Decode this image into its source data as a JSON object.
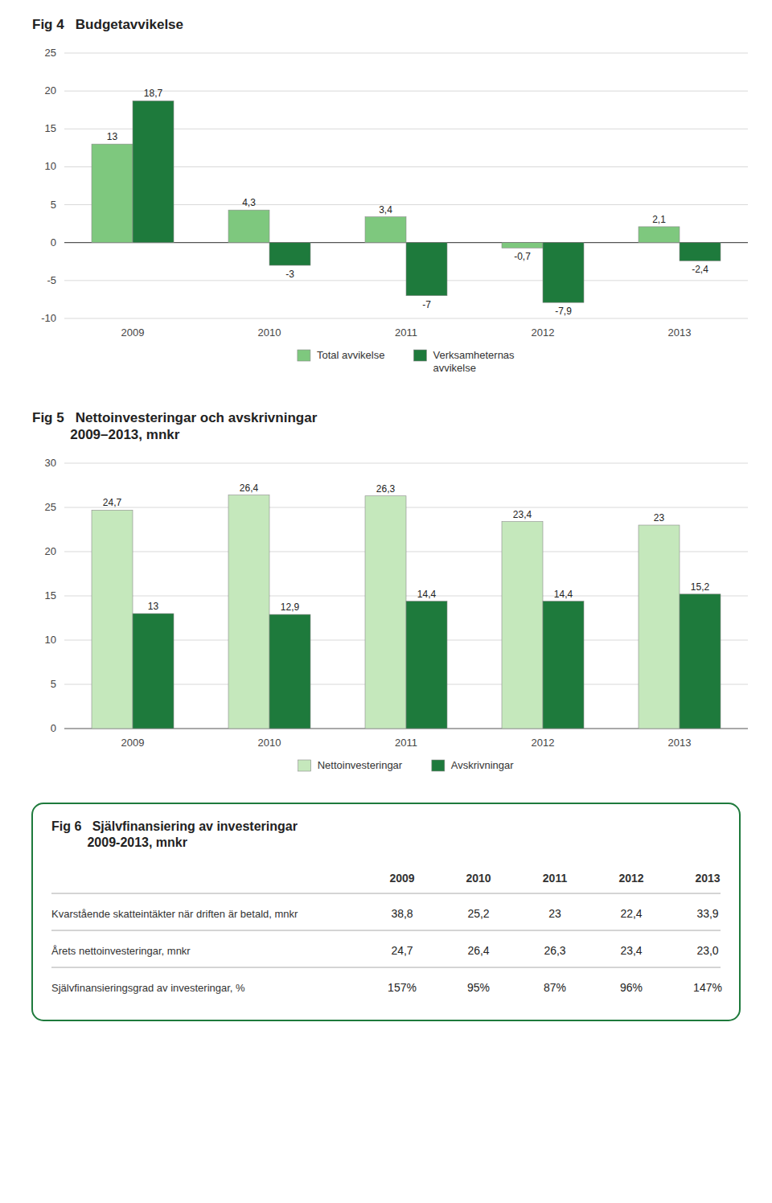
{
  "chart_data": [
    {
      "type": "bar",
      "title": "Fig 4   Budgetavvikelse",
      "categories": [
        "2009",
        "2010",
        "2011",
        "2012",
        "2013"
      ],
      "series": [
        {
          "name": "Total avvikelse",
          "color": "#7ec87e",
          "values": [
            13,
            4.3,
            3.4,
            -0.7,
            2.1
          ],
          "value_labels": [
            "13",
            "4,3",
            "3,4",
            "-0,7",
            "2,1"
          ]
        },
        {
          "name": "Verksamheternas\navvikelse",
          "color": "#1e7a3c",
          "values": [
            18.7,
            -3,
            -7,
            -7.9,
            -2.4
          ],
          "value_labels": [
            "18,7",
            "-3",
            "-7",
            "-7,9",
            "-2,4"
          ]
        }
      ],
      "ylim": [
        -10,
        25
      ],
      "yticks": [
        -10,
        -5,
        0,
        5,
        10,
        15,
        20,
        25
      ],
      "grid": true,
      "legend": "bottom",
      "data_labels": true
    },
    {
      "type": "bar",
      "title": "Fig 5   Nettoinvesteringar och avskrivningar\n          2009–2013, mnkr",
      "categories": [
        "2009",
        "2010",
        "2011",
        "2012",
        "2013"
      ],
      "series": [
        {
          "name": "Nettoinvesteringar",
          "color": "#c5e8bc",
          "values": [
            24.7,
            26.4,
            26.3,
            23.4,
            23.0
          ],
          "value_labels": [
            "24,7",
            "26,4",
            "26,3",
            "23,4",
            "23"
          ]
        },
        {
          "name": "Avskrivningar",
          "color": "#1e7a3c",
          "values": [
            13,
            12.9,
            14.4,
            14.4,
            15.2
          ],
          "value_labels": [
            "13",
            "12,9",
            "14,4",
            "14,4",
            "15,2"
          ]
        }
      ],
      "ylim": [
        0,
        30
      ],
      "yticks": [
        0,
        5,
        10,
        15,
        20,
        25,
        30
      ],
      "grid": true,
      "legend": "bottom",
      "data_labels": true
    },
    {
      "type": "table",
      "title": "Fig 6   Självfinansiering av investeringar\n          2009-2013, mnkr",
      "categories": [
        "2009",
        "2010",
        "2011",
        "2012",
        "2013"
      ],
      "color": "#1e7a3c",
      "series": [
        {
          "name": "Kvarstående skatteintäkter när driften är betald, mnkr",
          "values": [
            38.8,
            25.2,
            23,
            22.4,
            33.9
          ],
          "value_labels": [
            "38,8",
            "25,2",
            "23",
            "22,4",
            "33,9"
          ]
        },
        {
          "name": "Årets nettoinvesteringar, mnkr",
          "values": [
            24.7,
            26.4,
            26.3,
            23.4,
            23.0
          ],
          "value_labels": [
            "24,7",
            "26,4",
            "26,3",
            "23,4",
            "23,0"
          ]
        },
        {
          "name": "Självfinansieringsgrad av investeringar, %",
          "values": [
            157,
            95,
            87,
            96,
            147
          ],
          "value_labels": [
            "157%",
            "95%",
            "87%",
            "96%",
            "147%"
          ]
        }
      ]
    }
  ]
}
